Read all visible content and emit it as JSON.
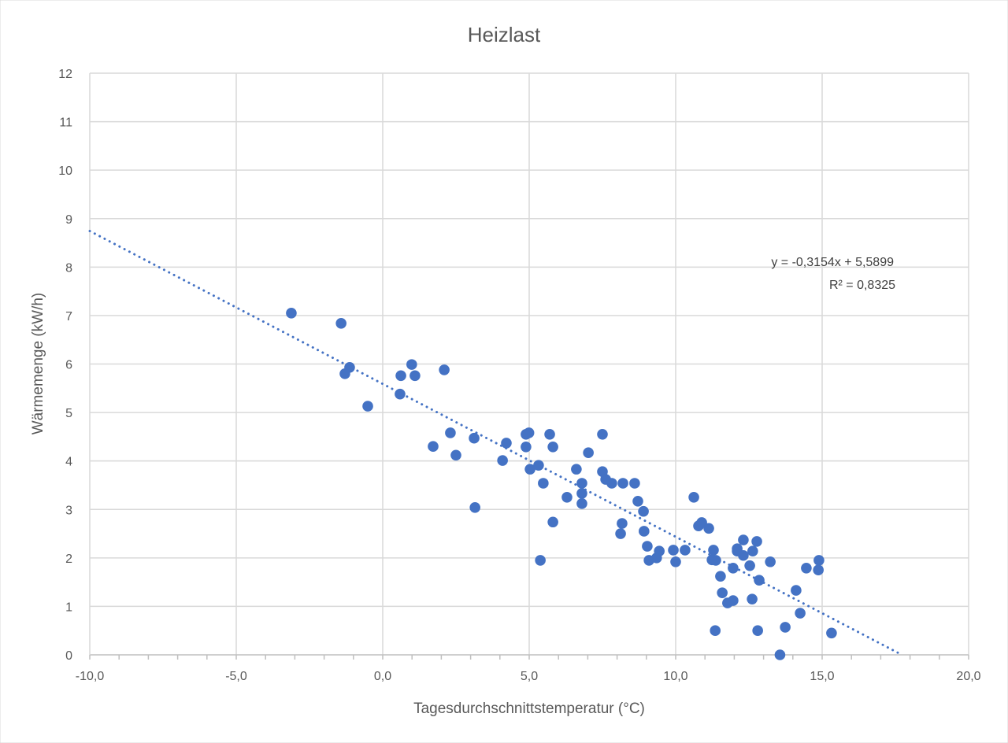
{
  "chart_data": {
    "type": "scatter",
    "title": "Heizlast",
    "xlabel": "Tagesdurchschnittstemperatur (°C)",
    "ylabel": "Wärmemenge (kW/h)",
    "xlim": [
      -10,
      20
    ],
    "ylim": [
      0,
      12
    ],
    "x_ticks": [
      "-10,0",
      "-5,0",
      "0,0",
      "5,0",
      "10,0",
      "15,0",
      "20,0"
    ],
    "y_ticks": [
      "0",
      "1",
      "2",
      "3",
      "4",
      "5",
      "6",
      "7",
      "8",
      "9",
      "10",
      "11",
      "12"
    ],
    "grid": true,
    "legend": "none",
    "marker_color": "#4472C4",
    "trendline": {
      "type": "linear",
      "slope": -0.3154,
      "intercept": 5.5899,
      "style": "dotted",
      "equation_label": "y = -0,3154x + 5,5899",
      "r2_label": "R² = 0,8325"
    },
    "points": [
      [
        -3.12,
        7.05
      ],
      [
        -1.42,
        6.84
      ],
      [
        -1.13,
        5.93
      ],
      [
        -1.29,
        5.8
      ],
      [
        -0.51,
        5.13
      ],
      [
        0.59,
        5.38
      ],
      [
        0.62,
        5.76
      ],
      [
        0.99,
        5.99
      ],
      [
        1.1,
        5.76
      ],
      [
        2.1,
        5.88
      ],
      [
        1.72,
        4.3
      ],
      [
        2.31,
        4.58
      ],
      [
        2.5,
        4.12
      ],
      [
        3.12,
        4.47
      ],
      [
        3.15,
        3.04
      ],
      [
        4.09,
        4.01
      ],
      [
        4.22,
        4.37
      ],
      [
        4.89,
        4.55
      ],
      [
        4.89,
        4.29
      ],
      [
        4.99,
        4.58
      ],
      [
        5.03,
        3.83
      ],
      [
        5.32,
        3.91
      ],
      [
        5.48,
        3.54
      ],
      [
        5.7,
        4.55
      ],
      [
        5.81,
        4.29
      ],
      [
        5.81,
        2.74
      ],
      [
        5.38,
        1.95
      ],
      [
        6.29,
        3.25
      ],
      [
        6.61,
        3.83
      ],
      [
        6.8,
        3.54
      ],
      [
        6.8,
        3.33
      ],
      [
        6.8,
        3.12
      ],
      [
        7.02,
        4.17
      ],
      [
        7.5,
        4.55
      ],
      [
        7.5,
        3.78
      ],
      [
        7.61,
        3.62
      ],
      [
        7.82,
        3.54
      ],
      [
        8.2,
        3.54
      ],
      [
        8.6,
        3.54
      ],
      [
        8.71,
        3.17
      ],
      [
        8.9,
        2.96
      ],
      [
        8.92,
        2.55
      ],
      [
        8.17,
        2.71
      ],
      [
        8.12,
        2.5
      ],
      [
        9.03,
        2.24
      ],
      [
        9.09,
        1.95
      ],
      [
        9.35,
        2.0
      ],
      [
        9.44,
        2.14
      ],
      [
        9.92,
        2.16
      ],
      [
        10.0,
        1.92
      ],
      [
        10.32,
        2.16
      ],
      [
        10.62,
        3.25
      ],
      [
        10.78,
        2.66
      ],
      [
        10.89,
        2.73
      ],
      [
        11.13,
        2.61
      ],
      [
        11.29,
        2.16
      ],
      [
        11.24,
        1.96
      ],
      [
        11.37,
        1.95
      ],
      [
        11.53,
        1.62
      ],
      [
        11.59,
        1.28
      ],
      [
        11.77,
        1.07
      ],
      [
        11.96,
        1.12
      ],
      [
        11.96,
        1.79
      ],
      [
        12.1,
        2.19
      ],
      [
        12.1,
        2.14
      ],
      [
        12.31,
        2.37
      ],
      [
        12.31,
        2.05
      ],
      [
        12.53,
        1.84
      ],
      [
        12.63,
        2.14
      ],
      [
        12.61,
        1.15
      ],
      [
        12.77,
        2.34
      ],
      [
        12.85,
        1.54
      ],
      [
        12.8,
        0.5
      ],
      [
        13.23,
        1.92
      ],
      [
        14.11,
        1.33
      ],
      [
        14.25,
        0.86
      ],
      [
        14.46,
        1.79
      ],
      [
        14.89,
        1.95
      ],
      [
        14.87,
        1.75
      ],
      [
        15.32,
        0.45
      ],
      [
        13.74,
        0.57
      ],
      [
        13.56,
        0.0
      ],
      [
        11.35,
        0.5
      ]
    ]
  }
}
